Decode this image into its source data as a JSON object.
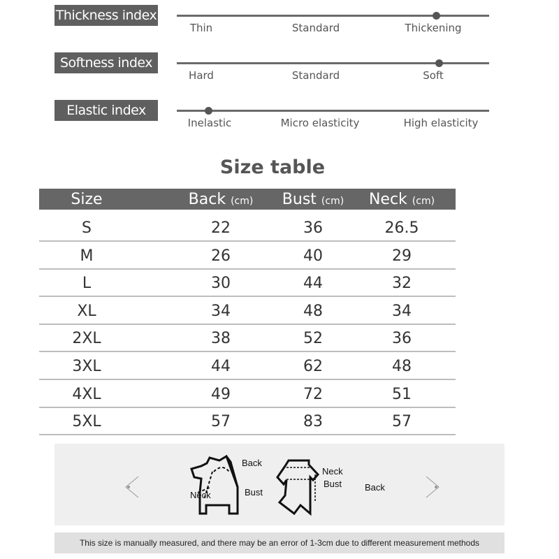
{
  "indices": [
    {
      "label": "Thickness index",
      "ticks": [
        "Thin",
        "Standard",
        "Thickening"
      ],
      "level": 0.83,
      "level_label": "Thickening"
    },
    {
      "label": "Softness index",
      "ticks": [
        "Hard",
        "Standard",
        "Soft"
      ],
      "level": 0.84,
      "level_label": "Soft"
    },
    {
      "label": "Elastic index",
      "ticks": [
        "Inelastic",
        "Micro elasticity",
        "High elasticity"
      ],
      "level": 0.1,
      "level_label": "Inelastic"
    }
  ],
  "size_table": {
    "title": "Size table",
    "headers": [
      {
        "name": "Size",
        "unit": ""
      },
      {
        "name": "Back",
        "unit": "(cm)"
      },
      {
        "name": "Bust",
        "unit": "(cm)"
      },
      {
        "name": "Neck",
        "unit": "(cm)"
      }
    ],
    "rows": [
      [
        "S",
        "22",
        "36",
        "26.5"
      ],
      [
        "M",
        "26",
        "40",
        "29"
      ],
      [
        "L",
        "30",
        "44",
        "32"
      ],
      [
        "XL",
        "34",
        "48",
        "34"
      ],
      [
        "2XL",
        "38",
        "52",
        "36"
      ],
      [
        "3XL",
        "44",
        "62",
        "48"
      ],
      [
        "4XL",
        "49",
        "72",
        "51"
      ],
      [
        "5XL",
        "57",
        "83",
        "57"
      ]
    ]
  },
  "diagram": {
    "dog": {
      "back": "Back",
      "neck": "Neck",
      "bust": "Bust"
    },
    "garment": {
      "neck": "Neck",
      "bust": "Bust",
      "back": "Back"
    }
  },
  "note": "This size is manually measured, and there may be an error of 1-3cm due to different measurement methods"
}
